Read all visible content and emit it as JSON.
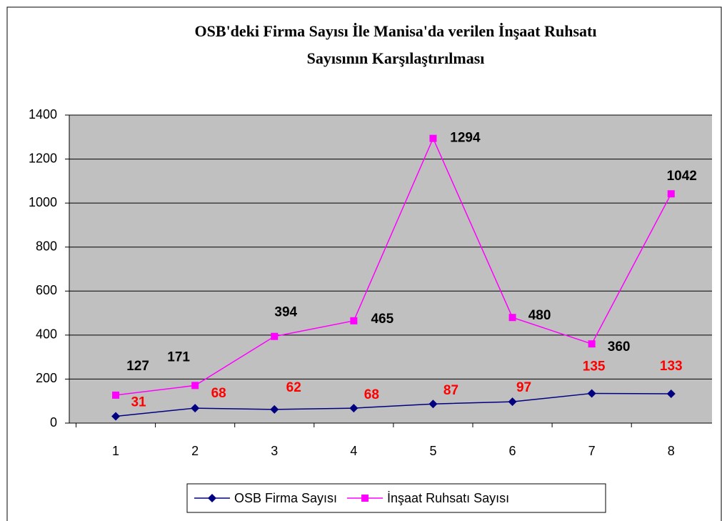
{
  "chart_data": {
    "type": "line",
    "title": [
      "OSB'deki Firma Sayısı İle Manisa'da verilen İnşaat Ruhsatı",
      "Sayısının Karşılaştırılması"
    ],
    "categories": [
      "1",
      "2",
      "3",
      "4",
      "5",
      "6",
      "7",
      "8"
    ],
    "series": [
      {
        "name": "OSB Firma Sayısı",
        "color": "#000080",
        "marker": "diamond",
        "label_color": "#ff0000",
        "values": [
          31,
          68,
          62,
          68,
          87,
          97,
          135,
          133
        ]
      },
      {
        "name": "İnşaat Ruhsatı Sayısı",
        "color": "#ff00ff",
        "marker": "square",
        "label_color": "#000000",
        "values": [
          127,
          171,
          394,
          465,
          1294,
          480,
          360,
          1042
        ]
      }
    ],
    "ylim": [
      0,
      1400
    ],
    "yticks": [
      0,
      200,
      400,
      600,
      800,
      1000,
      1200,
      1400
    ],
    "grid": true,
    "legend": "bottom"
  }
}
